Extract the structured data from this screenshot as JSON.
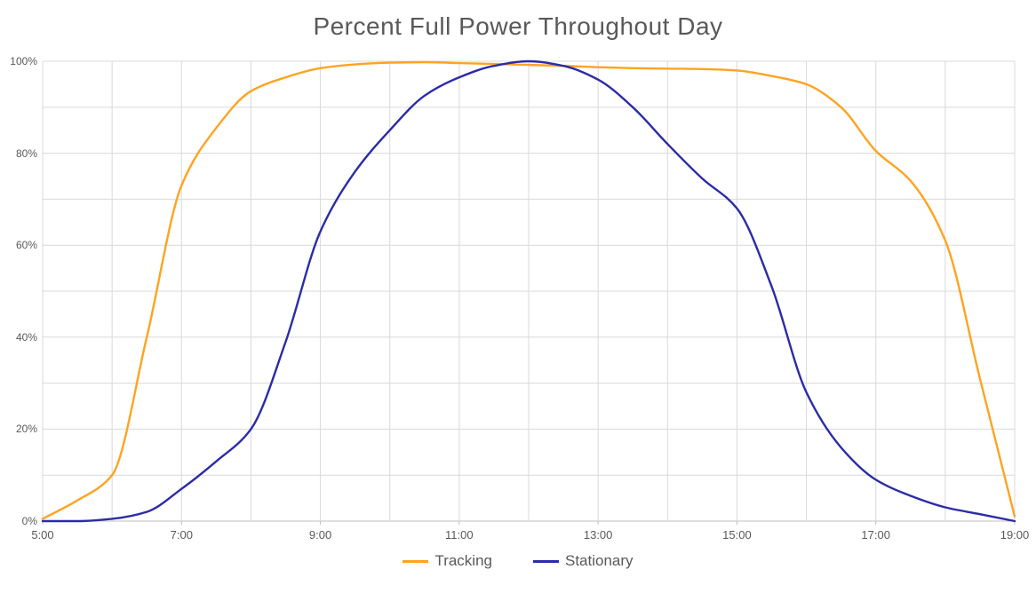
{
  "title": "Percent Full Power Throughout Day",
  "colors": {
    "background": "#FFFFFF",
    "title_text": "#595959",
    "axis_text": "#595959",
    "gridline": "#D9D9D9",
    "axis_line": "#BFBFBF",
    "tracking_line": "#FFA320",
    "stationary_line": "#2B2BA8"
  },
  "chart_data": {
    "type": "line",
    "title": "Percent Full Power Throughout Day",
    "xlabel": "",
    "ylabel": "",
    "x_unit": "hour_of_day",
    "xlim": [
      5,
      19
    ],
    "ylim": [
      0,
      100
    ],
    "grid": "both",
    "x_gridline_step_hours": 1,
    "y_gridline_step_percent": 10,
    "x_tick_labels": [
      "5:00",
      "7:00",
      "9:00",
      "11:00",
      "13:00",
      "15:00",
      "17:00",
      "19:00"
    ],
    "x_tick_values": [
      5,
      7,
      9,
      11,
      13,
      15,
      17,
      19
    ],
    "y_tick_labels": [
      "0%",
      "20%",
      "40%",
      "60%",
      "80%",
      "100%"
    ],
    "y_tick_values": [
      0,
      20,
      40,
      60,
      80,
      100
    ],
    "legend_position": "bottom-center",
    "x": [
      5,
      5.5,
      6,
      6.5,
      7,
      7.5,
      8,
      8.5,
      9,
      9.5,
      10,
      10.5,
      11,
      11.5,
      12,
      12.5,
      13,
      13.5,
      14,
      14.5,
      15,
      15.5,
      16,
      16.5,
      17,
      17.5,
      18,
      18.5,
      19
    ],
    "series": [
      {
        "name": "Tracking",
        "color": "#FFA320",
        "values": [
          0.5,
          4.5,
          10,
          40,
          73,
          85.5,
          93.5,
          96.5,
          98.5,
          99.3,
          99.7,
          99.8,
          99.6,
          99.4,
          99.2,
          99,
          98.7,
          98.5,
          98.4,
          98.3,
          98,
          96.8,
          95,
          90,
          80.5,
          74,
          61,
          31,
          1
        ]
      },
      {
        "name": "Stationary",
        "color": "#2B2BA8",
        "values": [
          0,
          0,
          0.5,
          2,
          7,
          13,
          20,
          39,
          63,
          76,
          85,
          92.5,
          96.5,
          99,
          100,
          99,
          96,
          90,
          82,
          74.5,
          68,
          51,
          28,
          16,
          9,
          5.5,
          3,
          1.5,
          0
        ]
      }
    ]
  }
}
